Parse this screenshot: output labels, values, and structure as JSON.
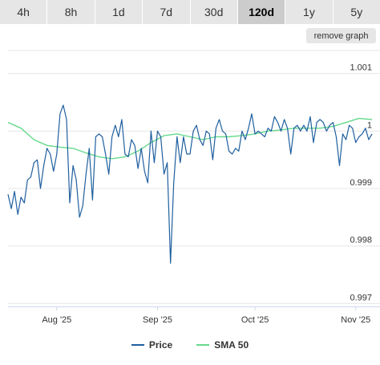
{
  "ranges": {
    "tabs": [
      {
        "label": "4h"
      },
      {
        "label": "8h"
      },
      {
        "label": "1d"
      },
      {
        "label": "7d"
      },
      {
        "label": "30d"
      },
      {
        "label": "120d"
      },
      {
        "label": "1y"
      },
      {
        "label": "5y"
      }
    ],
    "active": "120d"
  },
  "remove_graph_label": "remove graph",
  "chart_data": {
    "type": "line",
    "x_ticks": [
      "Aug '25",
      "Sep '25",
      "Oct '25",
      "Nov '25"
    ],
    "x_tick_days": [
      15,
      46,
      76,
      107
    ],
    "y_ticks": [
      0.997,
      0.998,
      0.999,
      1,
      1.001
    ],
    "ylim": [
      0.99695,
      1.0014
    ],
    "xlim": [
      0,
      112
    ],
    "grid": true,
    "legend_position": "bottom",
    "colors": {
      "price": "#1f5f9f",
      "sma": "#66d98c"
    },
    "series": [
      {
        "name": "Price",
        "x": [
          0,
          1,
          2,
          3,
          4,
          5,
          6,
          7,
          8,
          9,
          10,
          11,
          12,
          13,
          14,
          15,
          16,
          17,
          18,
          19,
          20,
          21,
          22,
          23,
          24,
          25,
          26,
          27,
          28,
          29,
          30,
          31,
          32,
          33,
          34,
          35,
          36,
          37,
          38,
          39,
          40,
          41,
          42,
          43,
          44,
          45,
          46,
          47,
          48,
          49,
          50,
          51,
          52,
          53,
          54,
          55,
          56,
          57,
          58,
          59,
          60,
          61,
          62,
          63,
          64,
          65,
          66,
          67,
          68,
          69,
          70,
          71,
          72,
          73,
          74,
          75,
          76,
          77,
          78,
          79,
          80,
          81,
          82,
          83,
          84,
          85,
          86,
          87,
          88,
          89,
          90,
          91,
          92,
          93,
          94,
          95,
          96,
          97,
          98,
          99,
          100,
          101,
          102,
          103,
          104,
          105,
          106,
          107,
          108,
          109,
          110,
          111,
          112
        ],
        "y": [
          0.9989,
          0.99865,
          0.99895,
          0.99855,
          0.99885,
          0.99875,
          0.99915,
          0.9992,
          0.99945,
          0.9995,
          0.999,
          0.9994,
          0.9997,
          0.9996,
          0.9993,
          0.9996,
          1.0003,
          1.00045,
          1.0002,
          0.99875,
          0.9994,
          0.99915,
          0.9985,
          0.9987,
          0.99925,
          0.9997,
          0.9988,
          0.9999,
          0.99995,
          0.9999,
          0.9996,
          0.99925,
          0.9999,
          1.0001,
          0.9999,
          1.0002,
          0.9996,
          0.99955,
          0.99985,
          0.99975,
          0.99935,
          0.9997,
          0.9993,
          0.9991,
          1.0,
          0.99945,
          1.0,
          0.9999,
          0.99925,
          0.99945,
          0.9977,
          0.9991,
          0.9999,
          0.99945,
          0.9999,
          0.9996,
          0.9996,
          1.0,
          1.0001,
          0.99985,
          0.99975,
          1.0,
          0.99995,
          0.9995,
          1.00005,
          1.0002,
          1.0,
          0.99995,
          0.99965,
          0.9996,
          0.9997,
          0.99965,
          1.0,
          0.99985,
          1.00005,
          1.0003,
          0.99995,
          1.0,
          0.99995,
          0.9999,
          1.00005,
          1.0,
          1.00025,
          1.00015,
          1.0,
          1.0002,
          1.00005,
          0.9996,
          1.00005,
          1.0001,
          1.0,
          1.0001,
          1.0,
          1.00025,
          0.9998,
          1.00015,
          1.0002,
          1.00015,
          1.0,
          1.0001,
          1.00015,
          0.9999,
          0.9994,
          0.99995,
          0.99985,
          1.0001,
          1.00005,
          0.9998,
          0.9999,
          0.99995,
          1.00005,
          0.99985,
          0.99995
        ],
        "y_values": [
          0.9989,
          0.99865,
          0.99895,
          0.99855,
          0.99885,
          0.99875,
          0.99915,
          0.9992,
          0.99945,
          0.9995,
          0.999,
          0.9994,
          0.9997,
          0.9996,
          0.9993,
          0.9996,
          1.0003,
          1.00045,
          1.0002,
          0.99875,
          0.9994,
          0.99915,
          0.9985,
          0.9987,
          0.99925,
          0.9997,
          0.9988,
          0.9999,
          0.99995,
          0.9999,
          0.9996,
          0.99925,
          0.9999,
          1.0001,
          0.9999,
          1.0002,
          0.9996,
          0.99955,
          0.99985,
          0.99975,
          0.99935,
          0.9997,
          0.9993,
          0.9991,
          1.0,
          0.99945,
          1.0,
          0.9999,
          0.99925,
          0.99945,
          0.9977,
          0.9991,
          0.9999,
          0.99945,
          0.9999,
          0.9996,
          0.9996,
          1.0,
          1.0001,
          0.99985,
          0.99975,
          1.0,
          0.99995,
          0.9995,
          1.00005,
          1.0002,
          1.0,
          0.99995,
          0.99965,
          0.9996,
          0.9997,
          0.99965,
          1.0,
          0.99985,
          1.00005,
          1.0003,
          0.99995,
          1.0,
          0.99995,
          0.9999,
          1.00005,
          1.0,
          1.00025,
          1.00015,
          1.0,
          1.0002,
          1.00005,
          0.9996,
          1.00005,
          1.0001,
          1.0,
          1.0001,
          1.0,
          1.00025,
          0.9998,
          1.00015,
          1.0002,
          1.00015,
          1.0,
          1.0001,
          1.00015,
          0.9999,
          0.9994,
          0.99995,
          0.99985,
          1.0001,
          1.00005,
          0.9998,
          0.9999,
          0.99995,
          1.00005,
          0.99985,
          0.99995
        ]
      },
      {
        "name": "SMA 50",
        "x": [
          0,
          4,
          8,
          12,
          16,
          20,
          24,
          28,
          32,
          36,
          40,
          44,
          48,
          52,
          56,
          60,
          64,
          68,
          72,
          76,
          80,
          84,
          88,
          92,
          96,
          100,
          104,
          108,
          112
        ],
        "y": [
          1.00015,
          1.00005,
          0.99985,
          0.99975,
          0.99972,
          0.9997,
          0.99962,
          0.99955,
          0.99952,
          0.99955,
          0.99965,
          0.9998,
          0.99992,
          0.99995,
          0.9999,
          0.99985,
          0.9999,
          0.9999,
          0.99992,
          0.99995,
          1.0,
          1.00002,
          1.00005,
          1.00005,
          1.00005,
          1.00008,
          1.00015,
          1.00022,
          1.0002
        ]
      }
    ]
  }
}
